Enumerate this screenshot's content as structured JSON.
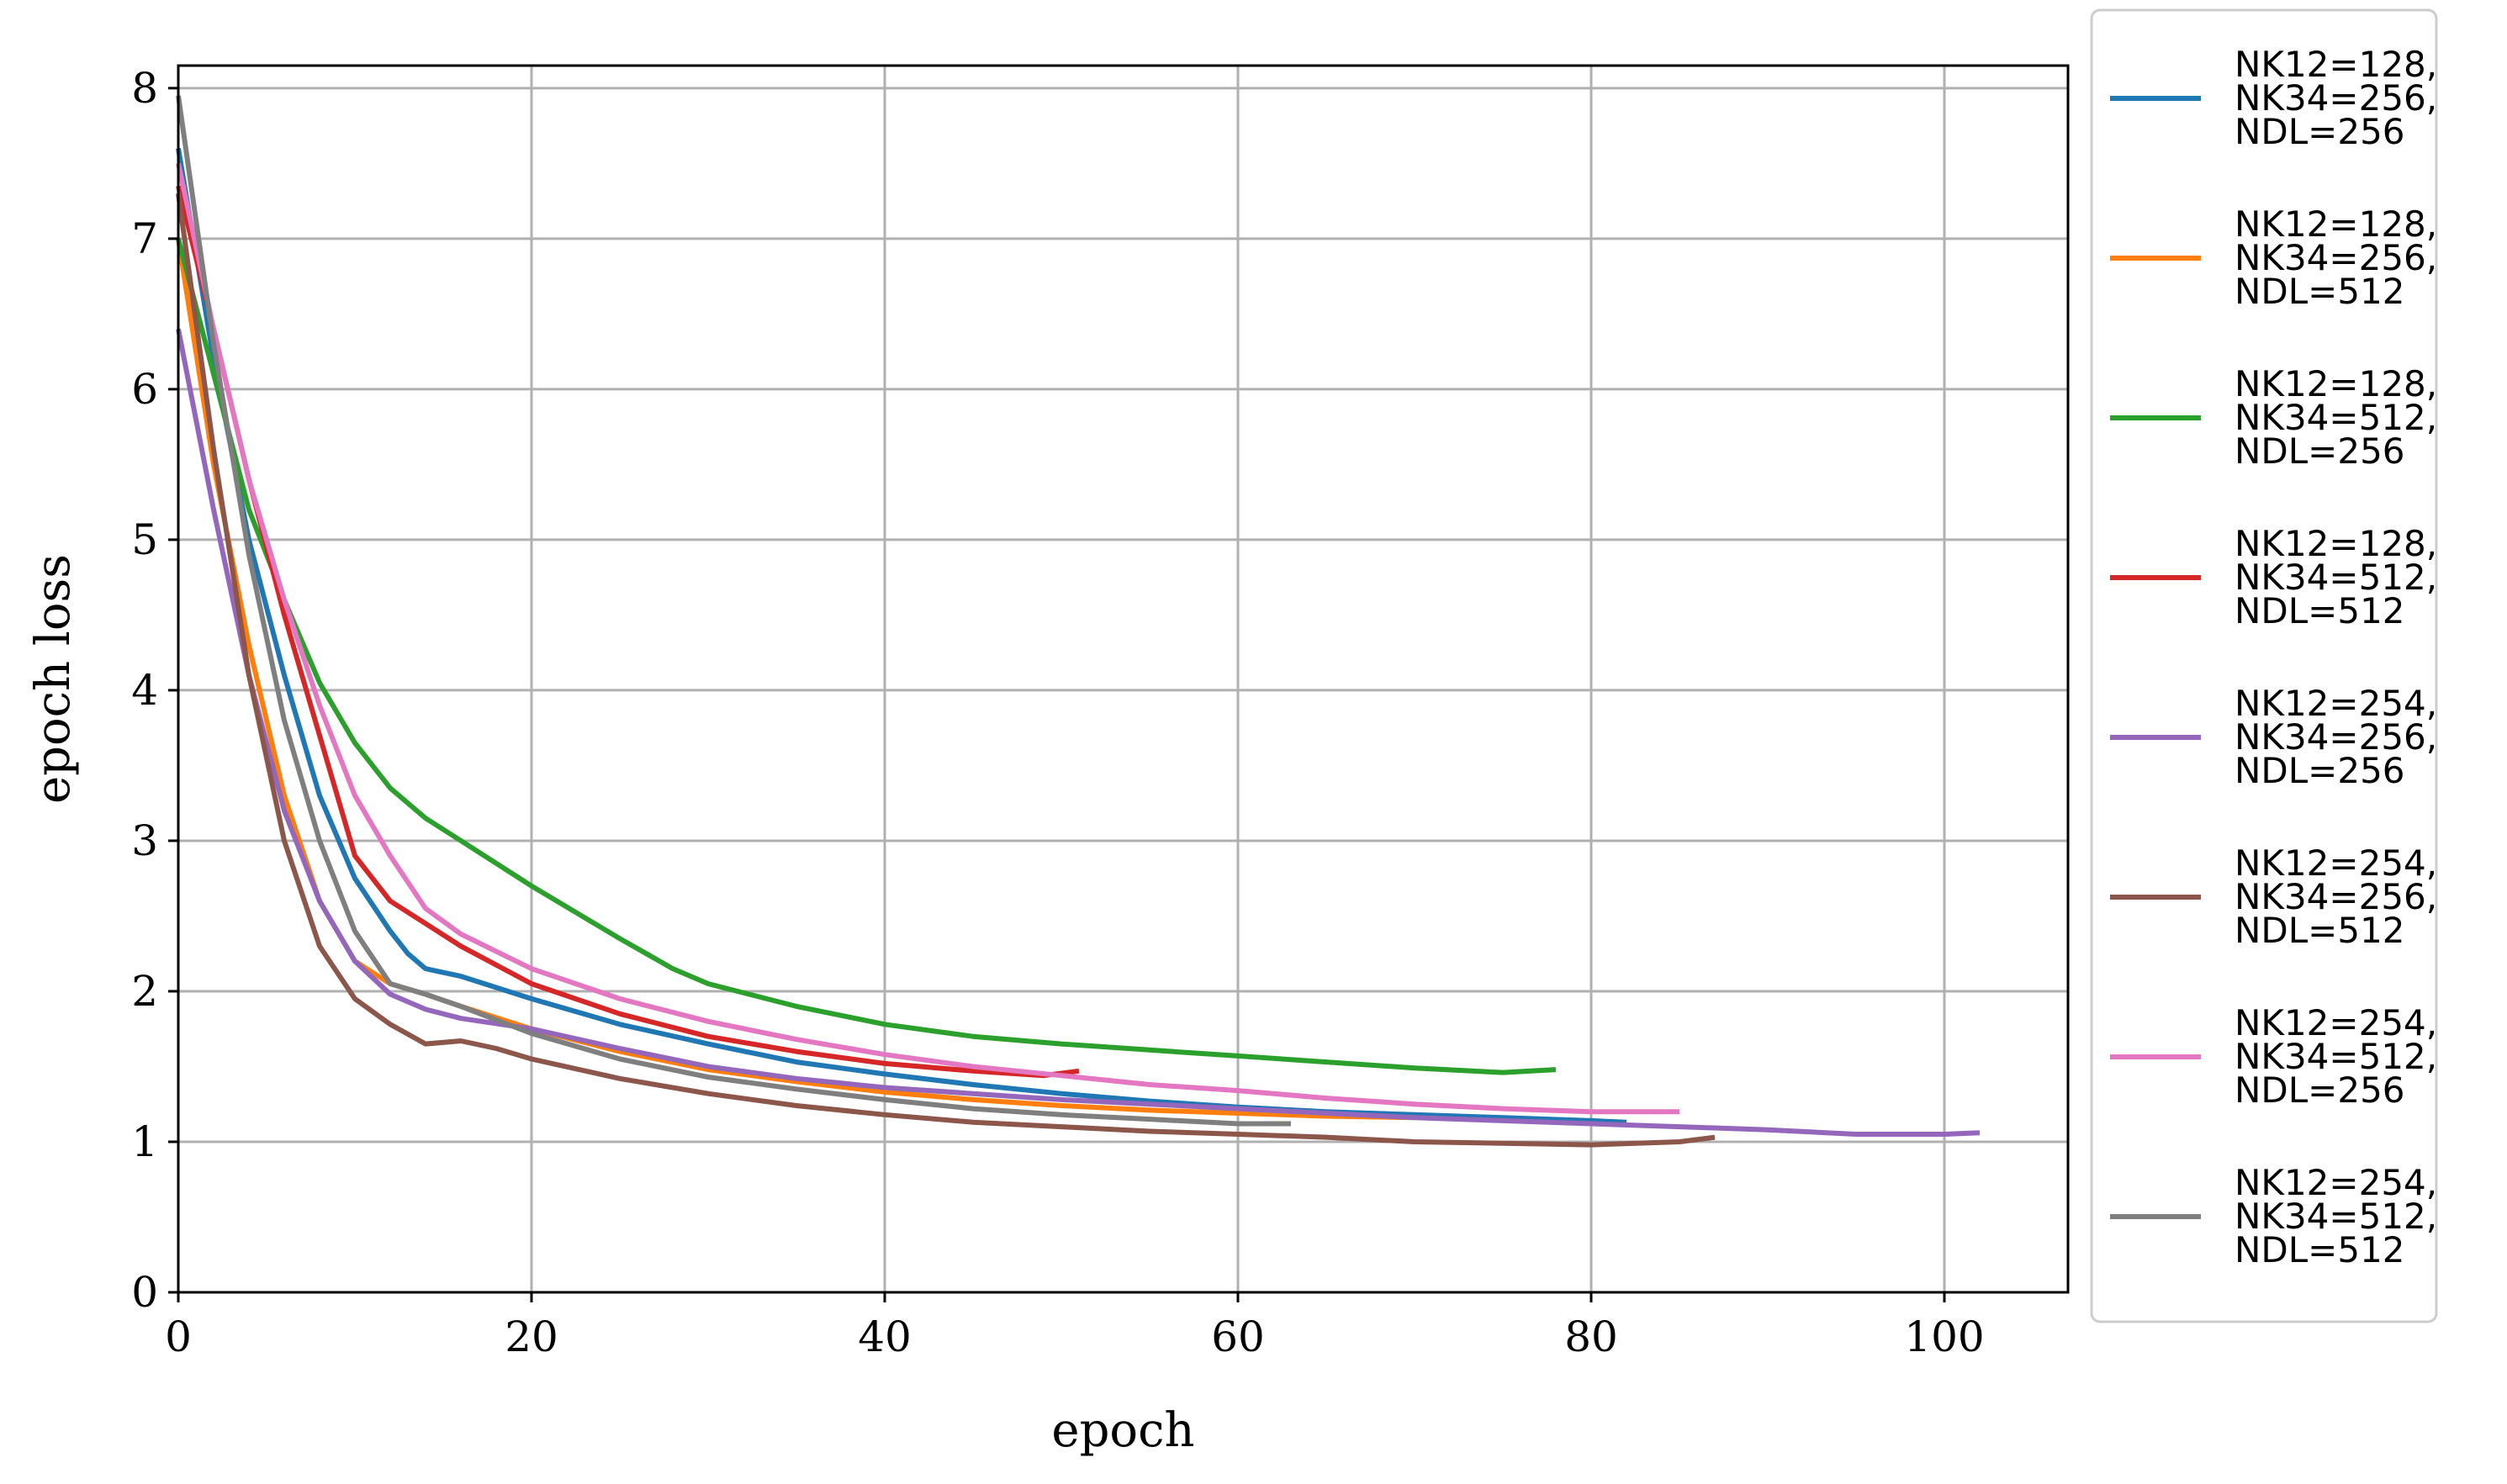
{
  "chart_data": {
    "type": "line",
    "title": "",
    "xlabel": "epoch",
    "ylabel": "epoch loss",
    "xlim": [
      0,
      107
    ],
    "ylim": [
      0,
      8.15
    ],
    "x_ticks": [
      "0",
      "20",
      "40",
      "60",
      "80",
      "100"
    ],
    "y_ticks": [
      "0",
      "1",
      "2",
      "3",
      "4",
      "5",
      "6",
      "7",
      "8"
    ],
    "grid": true,
    "legend_position": "outside-right",
    "series": [
      {
        "name": "NK12=128, NK34=256, NDL=256",
        "color": "#1f77b4",
        "points": [
          [
            0,
            7.6
          ],
          [
            2,
            6.2
          ],
          [
            4,
            5.0
          ],
          [
            6,
            4.1
          ],
          [
            8,
            3.3
          ],
          [
            10,
            2.75
          ],
          [
            12,
            2.4
          ],
          [
            13,
            2.25
          ],
          [
            14,
            2.15
          ],
          [
            16,
            2.1
          ],
          [
            20,
            1.95
          ],
          [
            25,
            1.78
          ],
          [
            30,
            1.65
          ],
          [
            35,
            1.53
          ],
          [
            40,
            1.45
          ],
          [
            45,
            1.38
          ],
          [
            50,
            1.32
          ],
          [
            55,
            1.27
          ],
          [
            60,
            1.23
          ],
          [
            65,
            1.2
          ],
          [
            70,
            1.18
          ],
          [
            75,
            1.16
          ],
          [
            80,
            1.14
          ],
          [
            82,
            1.13
          ]
        ]
      },
      {
        "name": "NK12=128, NK34=256, NDL=512",
        "color": "#ff7f0e",
        "points": [
          [
            0,
            7.0
          ],
          [
            2,
            5.5
          ],
          [
            4,
            4.3
          ],
          [
            6,
            3.3
          ],
          [
            8,
            2.6
          ],
          [
            10,
            2.2
          ],
          [
            12,
            2.05
          ],
          [
            14,
            1.98
          ],
          [
            16,
            1.9
          ],
          [
            20,
            1.75
          ],
          [
            25,
            1.6
          ],
          [
            30,
            1.48
          ],
          [
            35,
            1.4
          ],
          [
            40,
            1.33
          ],
          [
            45,
            1.28
          ],
          [
            50,
            1.24
          ],
          [
            55,
            1.21
          ],
          [
            60,
            1.19
          ],
          [
            65,
            1.17
          ],
          [
            70,
            1.16
          ]
        ]
      },
      {
        "name": "NK12=128, NK34=512, NDL=256",
        "color": "#2ca02c",
        "points": [
          [
            0,
            7.0
          ],
          [
            2,
            6.1
          ],
          [
            4,
            5.2
          ],
          [
            6,
            4.6
          ],
          [
            8,
            4.05
          ],
          [
            10,
            3.65
          ],
          [
            12,
            3.35
          ],
          [
            14,
            3.15
          ],
          [
            16,
            3.0
          ],
          [
            20,
            2.7
          ],
          [
            25,
            2.35
          ],
          [
            28,
            2.15
          ],
          [
            30,
            2.05
          ],
          [
            35,
            1.9
          ],
          [
            40,
            1.78
          ],
          [
            45,
            1.7
          ],
          [
            50,
            1.65
          ],
          [
            55,
            1.61
          ],
          [
            60,
            1.57
          ],
          [
            65,
            1.53
          ],
          [
            70,
            1.49
          ],
          [
            75,
            1.46
          ],
          [
            78,
            1.48
          ]
        ]
      },
      {
        "name": "NK12=128, NK34=512, NDL=512",
        "color": "#d62728",
        "points": [
          [
            0,
            7.35
          ],
          [
            2,
            6.4
          ],
          [
            4,
            5.4
          ],
          [
            6,
            4.5
          ],
          [
            8,
            3.7
          ],
          [
            10,
            2.9
          ],
          [
            12,
            2.6
          ],
          [
            14,
            2.45
          ],
          [
            16,
            2.3
          ],
          [
            20,
            2.05
          ],
          [
            25,
            1.85
          ],
          [
            30,
            1.7
          ],
          [
            35,
            1.6
          ],
          [
            40,
            1.52
          ],
          [
            45,
            1.47
          ],
          [
            49,
            1.44
          ],
          [
            51,
            1.47
          ]
        ]
      },
      {
        "name": "NK12=254, NK34=256, NDL=256",
        "color": "#9467bd",
        "points": [
          [
            0,
            6.4
          ],
          [
            2,
            5.2
          ],
          [
            4,
            4.1
          ],
          [
            6,
            3.2
          ],
          [
            8,
            2.6
          ],
          [
            10,
            2.2
          ],
          [
            12,
            1.98
          ],
          [
            14,
            1.88
          ],
          [
            16,
            1.82
          ],
          [
            20,
            1.75
          ],
          [
            25,
            1.62
          ],
          [
            30,
            1.5
          ],
          [
            35,
            1.42
          ],
          [
            40,
            1.36
          ],
          [
            45,
            1.32
          ],
          [
            50,
            1.28
          ],
          [
            55,
            1.25
          ],
          [
            60,
            1.22
          ],
          [
            65,
            1.19
          ],
          [
            70,
            1.16
          ],
          [
            75,
            1.14
          ],
          [
            80,
            1.12
          ],
          [
            85,
            1.1
          ],
          [
            90,
            1.08
          ],
          [
            95,
            1.05
          ],
          [
            100,
            1.05
          ],
          [
            102,
            1.06
          ]
        ]
      },
      {
        "name": "NK12=254, NK34=256, NDL=512",
        "color": "#8c564b",
        "points": [
          [
            0,
            7.3
          ],
          [
            2,
            5.6
          ],
          [
            4,
            4.1
          ],
          [
            6,
            3.0
          ],
          [
            8,
            2.3
          ],
          [
            10,
            1.95
          ],
          [
            12,
            1.78
          ],
          [
            14,
            1.65
          ],
          [
            16,
            1.67
          ],
          [
            18,
            1.62
          ],
          [
            20,
            1.55
          ],
          [
            25,
            1.42
          ],
          [
            30,
            1.32
          ],
          [
            35,
            1.24
          ],
          [
            40,
            1.18
          ],
          [
            45,
            1.13
          ],
          [
            50,
            1.1
          ],
          [
            55,
            1.07
          ],
          [
            60,
            1.05
          ],
          [
            65,
            1.03
          ],
          [
            70,
            1.0
          ],
          [
            75,
            0.99
          ],
          [
            80,
            0.98
          ],
          [
            85,
            1.0
          ],
          [
            87,
            1.03
          ]
        ]
      },
      {
        "name": "NK12=254, NK34=512, NDL=256",
        "color": "#e377c2",
        "points": [
          [
            0,
            7.5
          ],
          [
            2,
            6.4
          ],
          [
            4,
            5.4
          ],
          [
            6,
            4.6
          ],
          [
            8,
            3.9
          ],
          [
            10,
            3.3
          ],
          [
            12,
            2.9
          ],
          [
            14,
            2.55
          ],
          [
            16,
            2.38
          ],
          [
            20,
            2.15
          ],
          [
            25,
            1.95
          ],
          [
            30,
            1.8
          ],
          [
            35,
            1.68
          ],
          [
            40,
            1.58
          ],
          [
            45,
            1.5
          ],
          [
            50,
            1.44
          ],
          [
            55,
            1.38
          ],
          [
            60,
            1.34
          ],
          [
            65,
            1.29
          ],
          [
            70,
            1.25
          ],
          [
            75,
            1.22
          ],
          [
            80,
            1.2
          ],
          [
            85,
            1.2
          ]
        ]
      },
      {
        "name": "NK12=254, NK34=512, NDL=512",
        "color": "#7f7f7f",
        "points": [
          [
            0,
            7.95
          ],
          [
            2,
            6.3
          ],
          [
            4,
            4.9
          ],
          [
            6,
            3.8
          ],
          [
            8,
            3.0
          ],
          [
            10,
            2.4
          ],
          [
            12,
            2.05
          ],
          [
            14,
            1.98
          ],
          [
            16,
            1.9
          ],
          [
            20,
            1.72
          ],
          [
            25,
            1.55
          ],
          [
            30,
            1.43
          ],
          [
            35,
            1.35
          ],
          [
            40,
            1.28
          ],
          [
            45,
            1.22
          ],
          [
            50,
            1.18
          ],
          [
            55,
            1.15
          ],
          [
            60,
            1.12
          ],
          [
            63,
            1.12
          ]
        ]
      }
    ]
  }
}
